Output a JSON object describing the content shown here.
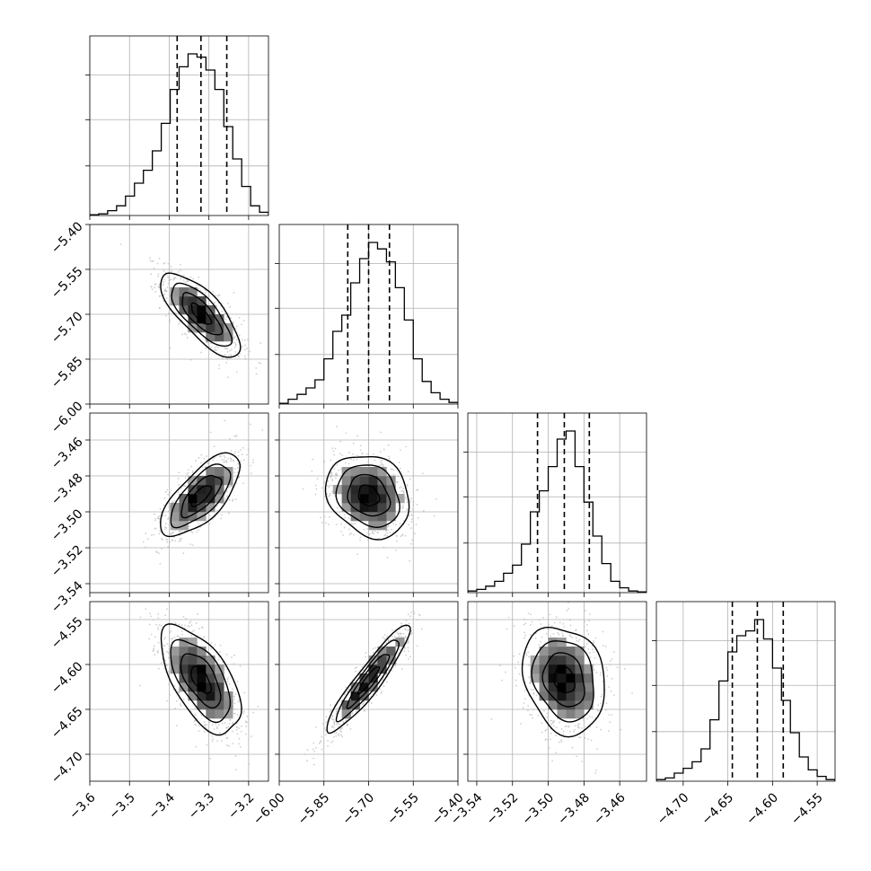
{
  "chart_data": {
    "type": "corner",
    "title": "",
    "parameters": [
      {
        "range": [
          -3.6,
          -3.15
        ],
        "ticks": [
          "-3.6",
          "-3.5",
          "-3.4",
          "-3.3",
          "-3.2"
        ],
        "tick_values": [
          -3.6,
          -3.5,
          -3.4,
          -3.3,
          -3.2
        ],
        "quantiles": [
          -3.38,
          -3.32,
          -3.255
        ],
        "hist": [
          0.005,
          0.01,
          0.03,
          0.06,
          0.12,
          0.2,
          0.28,
          0.4,
          0.57,
          0.78,
          0.92,
          1.0,
          0.98,
          0.9,
          0.78,
          0.55,
          0.35,
          0.18,
          0.06,
          0.02
        ]
      },
      {
        "range": [
          -6.0,
          -5.4
        ],
        "ticks": [
          "-6.00",
          "-5.85",
          "-5.70",
          "-5.55",
          "-5.40"
        ],
        "tick_values": [
          -6.0,
          -5.85,
          -5.7,
          -5.55,
          -5.4
        ],
        "quantiles": [
          -5.77,
          -5.7,
          -5.63
        ],
        "hist": [
          0.005,
          0.03,
          0.06,
          0.1,
          0.15,
          0.28,
          0.45,
          0.55,
          0.75,
          0.9,
          1.0,
          0.96,
          0.88,
          0.72,
          0.52,
          0.28,
          0.14,
          0.07,
          0.03,
          0.01
        ]
      },
      {
        "range": [
          -3.545,
          -3.445
        ],
        "ticks": [
          "-3.54",
          "-3.52",
          "-3.50",
          "-3.48",
          "-3.46"
        ],
        "tick_values": [
          -3.54,
          -3.52,
          -3.5,
          -3.48,
          -3.46
        ],
        "quantiles": [
          -3.506,
          -3.491,
          -3.477
        ],
        "hist": [
          0.01,
          0.02,
          0.04,
          0.07,
          0.12,
          0.17,
          0.3,
          0.5,
          0.63,
          0.78,
          0.95,
          1.0,
          0.78,
          0.56,
          0.35,
          0.18,
          0.07,
          0.03,
          0.01,
          0.005
        ]
      },
      {
        "range": [
          -4.73,
          -4.53
        ],
        "ticks": [
          "-4.70",
          "-4.65",
          "-4.60",
          "-4.55"
        ],
        "tick_values": [
          -4.7,
          -4.65,
          -4.6,
          -4.55
        ],
        "quantiles": [
          -4.645,
          -4.617,
          -4.588
        ],
        "hist": [
          0.01,
          0.02,
          0.05,
          0.08,
          0.12,
          0.2,
          0.38,
          0.62,
          0.8,
          0.9,
          0.93,
          1.0,
          0.88,
          0.7,
          0.5,
          0.3,
          0.15,
          0.07,
          0.03,
          0.01
        ]
      }
    ],
    "ytick_labels": {
      "1": [
        "-5.40",
        "-5.55",
        "-5.70",
        "-5.85",
        "-6.00"
      ],
      "2": [
        "-3.46",
        "-3.48",
        "-3.50",
        "-3.52",
        "-3.54"
      ],
      "3": [
        "-4.55",
        "-4.60",
        "-4.65",
        "-4.70"
      ]
    },
    "pairs": [
      {
        "row": 1,
        "col": 0,
        "mean": [
          -3.32,
          -5.7
        ],
        "sd": [
          0.05,
          0.07
        ],
        "rho": -0.75
      },
      {
        "row": 2,
        "col": 0,
        "mean": [
          -3.32,
          -3.491
        ],
        "sd": [
          0.05,
          0.0115
        ],
        "rho": 0.7
      },
      {
        "row": 2,
        "col": 1,
        "mean": [
          -5.7,
          -3.491
        ],
        "sd": [
          0.07,
          0.0115
        ],
        "rho": -0.2
      },
      {
        "row": 3,
        "col": 0,
        "mean": [
          -3.32,
          -4.617
        ],
        "sd": [
          0.05,
          0.03
        ],
        "rho": -0.6
      },
      {
        "row": 3,
        "col": 1,
        "mean": [
          -5.7,
          -4.617
        ],
        "sd": [
          0.07,
          0.03
        ],
        "rho": 0.93
      },
      {
        "row": 3,
        "col": 2,
        "mean": [
          -3.491,
          -4.617
        ],
        "sd": [
          0.0115,
          0.03
        ],
        "rho": -0.2
      }
    ],
    "contour_levels_sigma": [
      0.5,
      1.0,
      1.5,
      2.0
    ],
    "grid": true,
    "colors": {
      "line": "#000000",
      "grid": "#b0b0b0",
      "points": "#bbbbbb",
      "density_dark": "#000000"
    }
  }
}
